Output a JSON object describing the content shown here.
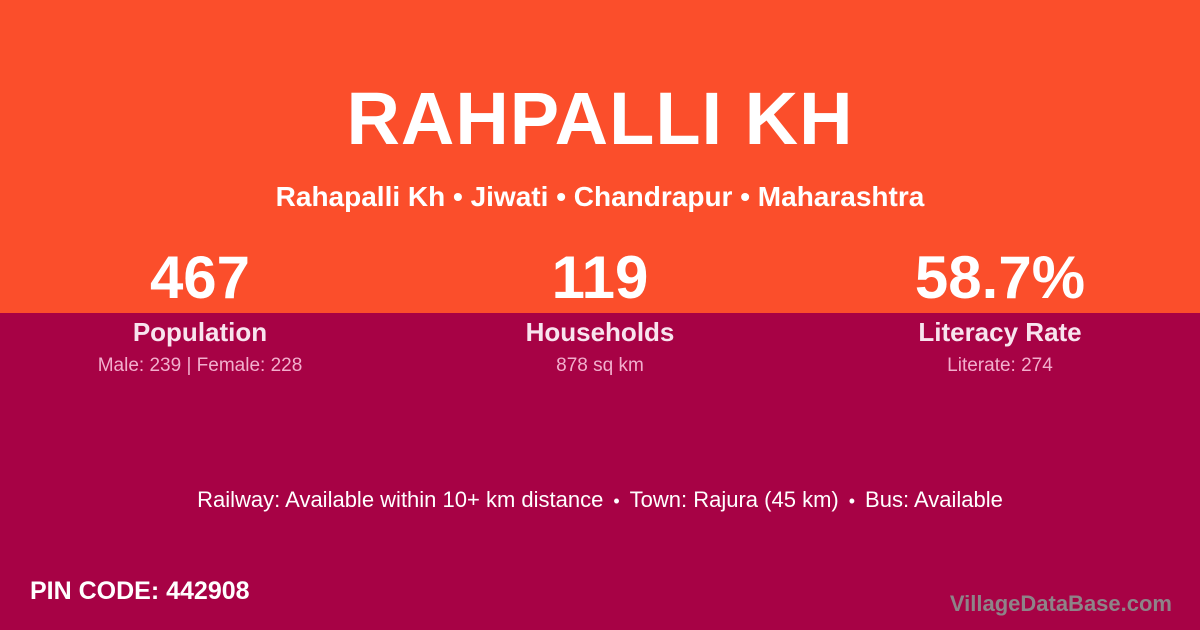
{
  "colors": {
    "top_bg": "#FB4E2B",
    "bottom_bg": "#A70245",
    "title_text": "#FFFFFF",
    "label_text": "#F8E4EE",
    "detail_text": "#F2AFCD",
    "watermark_text": "#8D8A8C"
  },
  "header": {
    "title": "RAHPALLI KH",
    "breadcrumb": "Rahapalli Kh • Jiwati • Chandrapur • Maharashtra"
  },
  "stats": [
    {
      "value": "467",
      "label": "Population",
      "detail": "Male: 239 | Female: 228"
    },
    {
      "value": "119",
      "label": "Households",
      "detail": "878 sq km"
    },
    {
      "value": "58.7%",
      "label": "Literacy Rate",
      "detail": "Literate: 274"
    }
  ],
  "amenities": {
    "railway": "Railway: Available within 10+ km distance",
    "separator": "•",
    "town": "Town: Rajura (45 km)",
    "bus": "Bus: Available"
  },
  "footer": {
    "pin_code": "PIN CODE: 442908",
    "watermark": "VillageDataBase.com"
  }
}
